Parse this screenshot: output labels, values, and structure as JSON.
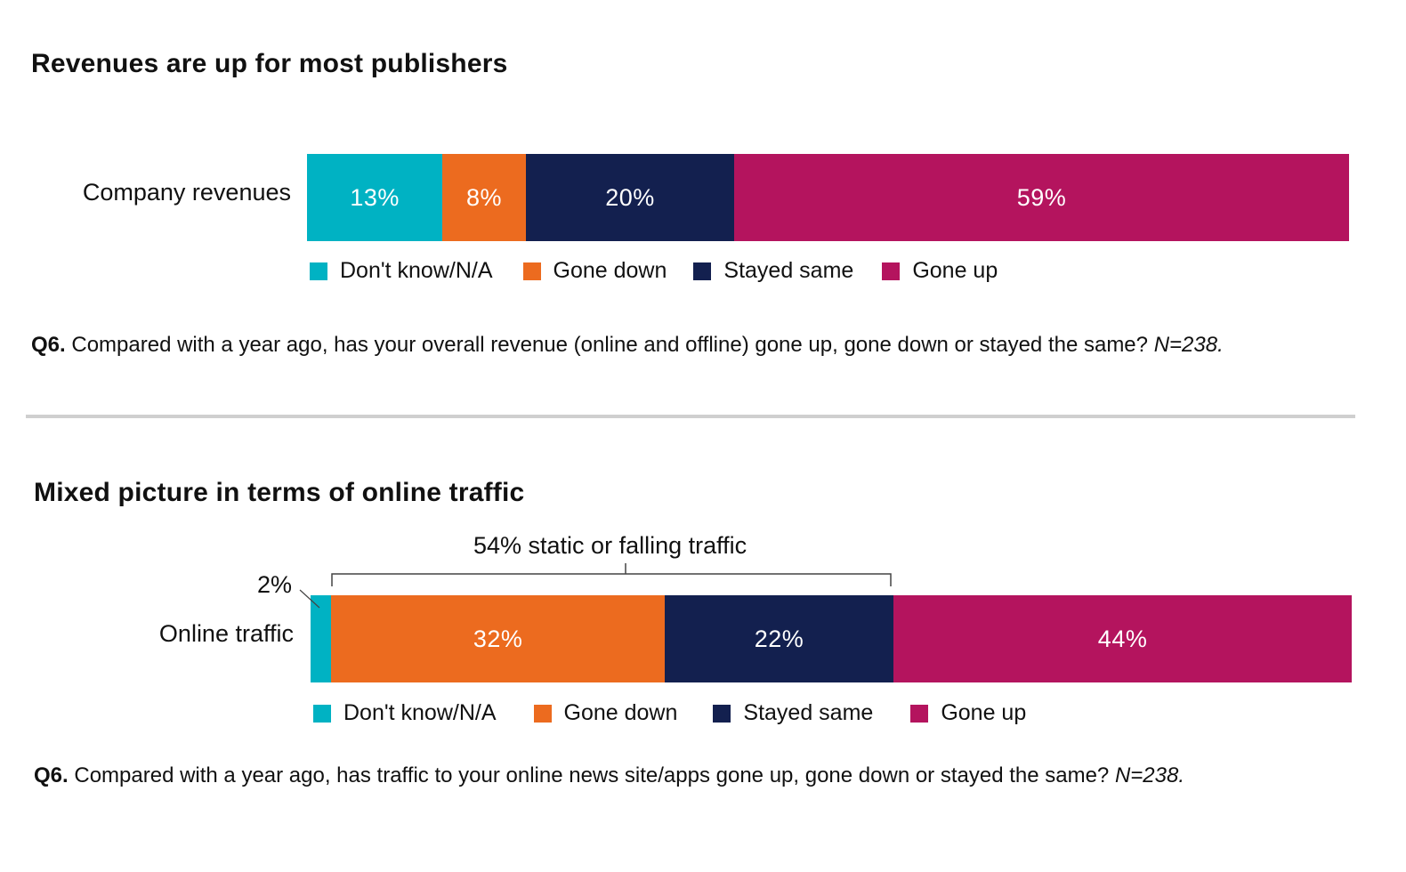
{
  "colors": {
    "dont_know": "#00b2c3",
    "gone_down": "#ec6b1f",
    "stayed_same": "#13204f",
    "gone_up": "#b4145e"
  },
  "chart_data": [
    {
      "type": "bar",
      "orientation": "horizontal-stacked",
      "title": "Revenues are up for most publishers",
      "categories": [
        "Company revenues"
      ],
      "series": [
        {
          "name": "Don't know/N/A",
          "values": [
            13
          ],
          "label": "13%"
        },
        {
          "name": "Gone down",
          "values": [
            8
          ],
          "label": "8%"
        },
        {
          "name": "Stayed same",
          "values": [
            20
          ],
          "label": "20%"
        },
        {
          "name": "Gone up",
          "values": [
            59
          ],
          "label": "59%"
        }
      ],
      "legend": [
        "Don't know/N/A",
        "Gone down",
        "Stayed same",
        "Gone up"
      ],
      "note_bold": "Q6.",
      "note_text": "Compared with a year ago, has your overall revenue (online and offline) gone up, gone down or stayed the same?",
      "note_italic": "N=238."
    },
    {
      "type": "bar",
      "orientation": "horizontal-stacked",
      "title": "Mixed picture in terms of online traffic",
      "categories": [
        "Online traffic"
      ],
      "series": [
        {
          "name": "Don't know/N/A",
          "values": [
            2
          ],
          "label": "2%"
        },
        {
          "name": "Gone down",
          "values": [
            32
          ],
          "label": "32%"
        },
        {
          "name": "Stayed same",
          "values": [
            22
          ],
          "label": "22%"
        },
        {
          "name": "Gone up",
          "values": [
            44
          ],
          "label": "44%"
        }
      ],
      "annotation": "54% static or falling traffic",
      "legend": [
        "Don't know/N/A",
        "Gone down",
        "Stayed same",
        "Gone up"
      ],
      "note_bold": "Q6.",
      "note_text": "Compared with a year ago, has traffic to your online news site/apps gone up, gone down or stayed the same?",
      "note_italic": "N=238."
    }
  ]
}
